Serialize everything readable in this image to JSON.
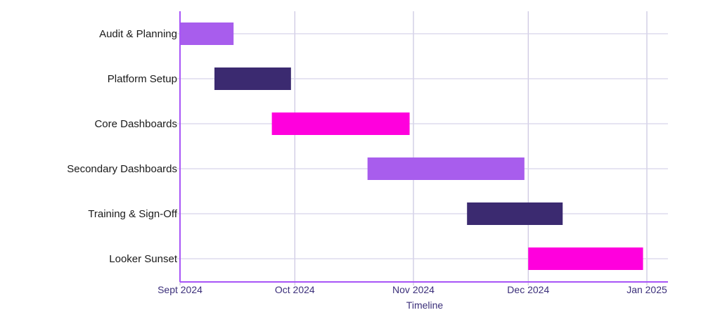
{
  "chart_data": {
    "type": "gantt",
    "title": "",
    "xlabel": "Timeline",
    "ylabel": "",
    "x_ticks": [
      {
        "date": "2024-09-01",
        "label": "Sept 2024"
      },
      {
        "date": "2024-10-01",
        "label": "Oct 2024"
      },
      {
        "date": "2024-11-01",
        "label": "Nov 2024"
      },
      {
        "date": "2024-12-01",
        "label": "Dec 2024"
      },
      {
        "date": "2025-01-01",
        "label": "Jan 2025"
      }
    ],
    "xlim": [
      "2024-09-01",
      "2025-01-06"
    ],
    "grid": true,
    "tasks": [
      {
        "name": "Audit & Planning",
        "start": "2024-09-01",
        "end": "2024-09-15",
        "color": "#a85ded"
      },
      {
        "name": "Platform Setup",
        "start": "2024-09-10",
        "end": "2024-09-30",
        "color": "#3b2a70"
      },
      {
        "name": "Core Dashboards",
        "start": "2024-09-25",
        "end": "2024-10-31",
        "color": "#ff00dd"
      },
      {
        "name": "Secondary Dashboards",
        "start": "2024-10-20",
        "end": "2024-11-30",
        "color": "#a85ded"
      },
      {
        "name": "Training & Sign-Off",
        "start": "2024-11-15",
        "end": "2024-12-10",
        "color": "#3b2a70"
      },
      {
        "name": "Looker Sunset",
        "start": "2024-12-01",
        "end": "2024-12-31",
        "color": "#ff00dd"
      }
    ]
  }
}
